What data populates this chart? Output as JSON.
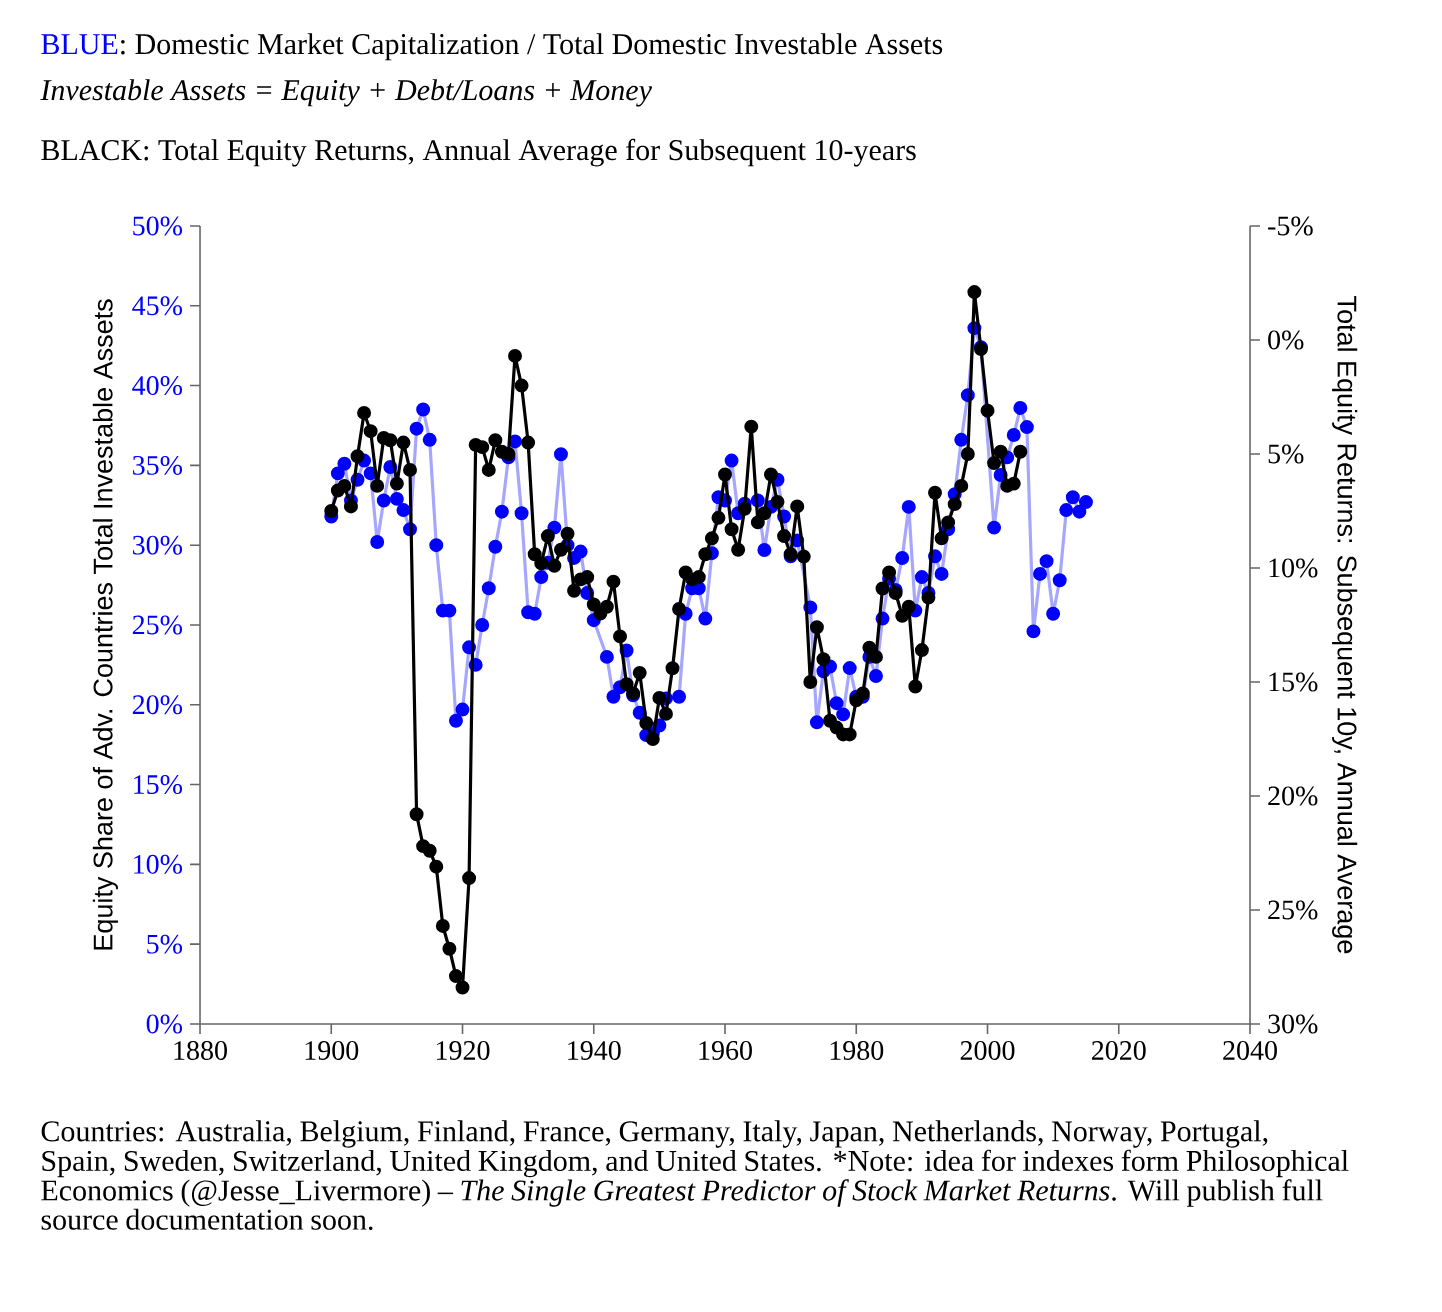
{
  "chart_data": {
    "type": "line",
    "title": ": Domestic Market Capitalization / Total Domestic Investable Assets",
    "subtitle": "Investable Assets = Equity + Debt/Loans + Money",
    "ylabel": "Equity Share of Adv. Countries Total Investable Assets",
    "y2label": "Total Equity Returns: Subsequent 10y, Annual Average",
    "annotations": [
      ": Total Equity Returns, Annual Average for Subsequent 10-years",
      "Countries: Australia, Belgium, Finland, France, Germany, Italy, Japan, Netherlands, Norway, Portugal, Spain, Sweden, Switzerland, United Kingdom, and United States. *Note: idea for indexes form Philosophical Economics (@Jesse_Livermore) –",
      "The Single Greatest Predictor of Stock Market Returns",
      ". Will publish full source documentation soon."
    ],
    "xlim": [
      1880,
      2040
    ],
    "xticks": [
      1880,
      1900,
      1920,
      1940,
      1960,
      1980,
      2000,
      2020,
      2040
    ],
    "ylim": [
      0,
      50
    ],
    "yticks": [
      {
        "value": 0,
        "label": "0%"
      },
      {
        "value": 5,
        "label": "5%"
      },
      {
        "value": 10,
        "label": "10%"
      },
      {
        "value": 15,
        "label": "15%"
      },
      {
        "value": 20,
        "label": "20%"
      },
      {
        "value": 25,
        "label": "25%"
      },
      {
        "value": 30,
        "label": "30%"
      },
      {
        "value": 35,
        "label": "35%"
      },
      {
        "value": 40,
        "label": "40%"
      },
      {
        "value": 45,
        "label": "45%"
      },
      {
        "value": 50,
        "label": "50%"
      }
    ],
    "y2lim": [
      30,
      -5
    ],
    "y2ticks": [
      {
        "value": -5,
        "label": "-5%"
      },
      {
        "value": 0,
        "label": "0%"
      },
      {
        "value": 5,
        "label": "5%"
      },
      {
        "value": 10,
        "label": "10%"
      },
      {
        "value": 15,
        "label": "15%"
      },
      {
        "value": 20,
        "label": "20%"
      },
      {
        "value": 25,
        "label": "25%"
      },
      {
        "value": 30,
        "label": "30%"
      }
    ],
    "marker": "circle",
    "line_style": "solid",
    "series": [
      {
        "name": "BLUE",
        "color": "#0000ff",
        "x": [
          1900,
          1901,
          1902,
          1903,
          1904,
          1905,
          1906,
          1907,
          1908,
          1909,
          1910,
          1911,
          1912,
          1913,
          1914,
          1915,
          1916,
          1917,
          1918,
          1919,
          1920,
          1921,
          1922,
          1923,
          1924,
          1925,
          1926,
          1927,
          1928,
          1929,
          1930,
          1931,
          1932,
          1933,
          1934,
          1935,
          1936,
          1937,
          1938,
          1939,
          1940,
          1942,
          1943,
          1944,
          1945,
          1946,
          1947,
          1948,
          1949,
          1950,
          1951,
          1953,
          1954,
          1955,
          1956,
          1957,
          1958,
          1959,
          1960,
          1961,
          1962,
          1963,
          1965,
          1966,
          1967,
          1968,
          1969,
          1970,
          1971,
          1973,
          1974,
          1975,
          1976,
          1977,
          1978,
          1979,
          1980,
          1981,
          1982,
          1983,
          1984,
          1985,
          1986,
          1987,
          1988,
          1989,
          1990,
          1991,
          1992,
          1993,
          1994,
          1995,
          1996,
          1997,
          1998,
          1999,
          2001,
          2002,
          2003,
          2004,
          2005,
          2006,
          2007,
          2008,
          2009,
          2010,
          2011,
          2012,
          2013,
          2014,
          2015
        ],
        "values": [
          31.8,
          34.5,
          35.1,
          32.8,
          34.1,
          35.3,
          34.5,
          30.2,
          32.8,
          34.9,
          32.9,
          32.2,
          31.0,
          37.3,
          38.5,
          36.6,
          30.0,
          25.9,
          25.9,
          19.0,
          19.7,
          23.6,
          22.5,
          25.0,
          27.3,
          29.9,
          32.1,
          35.5,
          36.5,
          32.0,
          25.8,
          25.7,
          28.0,
          28.9,
          31.1,
          35.7,
          30.0,
          29.2,
          29.6,
          27.0,
          25.3,
          23.0,
          20.5,
          21.1,
          23.4,
          20.6,
          19.5,
          18.1,
          18.2,
          18.7,
          20.4,
          20.5,
          25.7,
          27.3,
          27.3,
          25.4,
          29.5,
          33.0,
          32.8,
          35.3,
          32.0,
          32.6,
          32.8,
          29.7,
          32.4,
          34.1,
          31.8,
          29.3,
          30.3,
          26.1,
          18.9,
          22.1,
          22.4,
          20.1,
          19.4,
          22.3,
          20.5,
          20.5,
          23.0,
          21.8,
          25.4,
          27.9,
          27.2,
          29.2,
          32.4,
          25.9,
          28.0,
          27.0,
          29.3,
          28.2,
          31.0,
          33.2,
          36.6,
          39.4,
          43.6,
          42.4,
          31.1,
          34.4,
          35.5,
          36.9,
          38.6,
          37.4,
          24.6,
          28.2,
          29.0,
          25.7,
          27.8,
          32.2,
          33.0,
          32.1,
          32.7
        ]
      },
      {
        "name": "BLACK",
        "color": "#000000",
        "axis": "y2",
        "x": [
          1900,
          1901,
          1902,
          1903,
          1904,
          1905,
          1906,
          1907,
          1908,
          1909,
          1910,
          1911,
          1912,
          1913,
          1914,
          1915,
          1916,
          1917,
          1918,
          1919,
          1920,
          1921,
          1922,
          1923,
          1924,
          1925,
          1926,
          1927,
          1928,
          1929,
          1930,
          1931,
          1932,
          1933,
          1934,
          1935,
          1936,
          1937,
          1938,
          1939,
          1940,
          1941,
          1942,
          1943,
          1944,
          1945,
          1946,
          1947,
          1948,
          1949,
          1950,
          1951,
          1952,
          1953,
          1954,
          1955,
          1956,
          1957,
          1958,
          1959,
          1960,
          1961,
          1962,
          1963,
          1964,
          1965,
          1966,
          1967,
          1968,
          1969,
          1970,
          1971,
          1972,
          1973,
          1974,
          1975,
          1976,
          1977,
          1978,
          1979,
          1980,
          1981,
          1982,
          1983,
          1984,
          1985,
          1986,
          1987,
          1988,
          1989,
          1990,
          1991,
          1992,
          1993,
          1994,
          1995,
          1996,
          1997,
          1998,
          1999,
          2000,
          2001,
          2002,
          2003,
          2004,
          2005
        ],
        "values": [
          7.5,
          6.6,
          6.4,
          7.3,
          5.1,
          3.2,
          4.0,
          6.4,
          4.3,
          4.4,
          6.3,
          4.5,
          5.7,
          20.8,
          22.2,
          22.4,
          23.1,
          25.7,
          26.7,
          27.9,
          28.4,
          23.6,
          4.6,
          4.7,
          5.7,
          4.4,
          4.9,
          5.0,
          0.7,
          2.0,
          4.5,
          9.4,
          9.8,
          8.6,
          9.9,
          9.2,
          8.5,
          11.0,
          10.5,
          10.4,
          11.6,
          12.0,
          11.7,
          10.6,
          13.0,
          15.1,
          15.5,
          14.6,
          16.8,
          17.5,
          15.7,
          16.4,
          14.4,
          11.8,
          10.2,
          10.5,
          10.4,
          9.4,
          8.7,
          7.8,
          5.9,
          8.3,
          9.2,
          7.4,
          3.8,
          8.0,
          7.6,
          5.9,
          7.1,
          8.6,
          9.4,
          7.3,
          9.5,
          15.0,
          12.6,
          14.0,
          16.7,
          17.0,
          17.3,
          17.3,
          15.8,
          15.5,
          13.5,
          13.9,
          10.9,
          10.2,
          11.1,
          12.1,
          11.7,
          15.2,
          13.6,
          11.3,
          6.7,
          8.7,
          8.0,
          7.2,
          6.4,
          5.0,
          -2.1,
          0.4,
          3.1,
          5.4,
          4.9,
          6.4,
          6.3,
          4.9
        ]
      }
    ]
  }
}
